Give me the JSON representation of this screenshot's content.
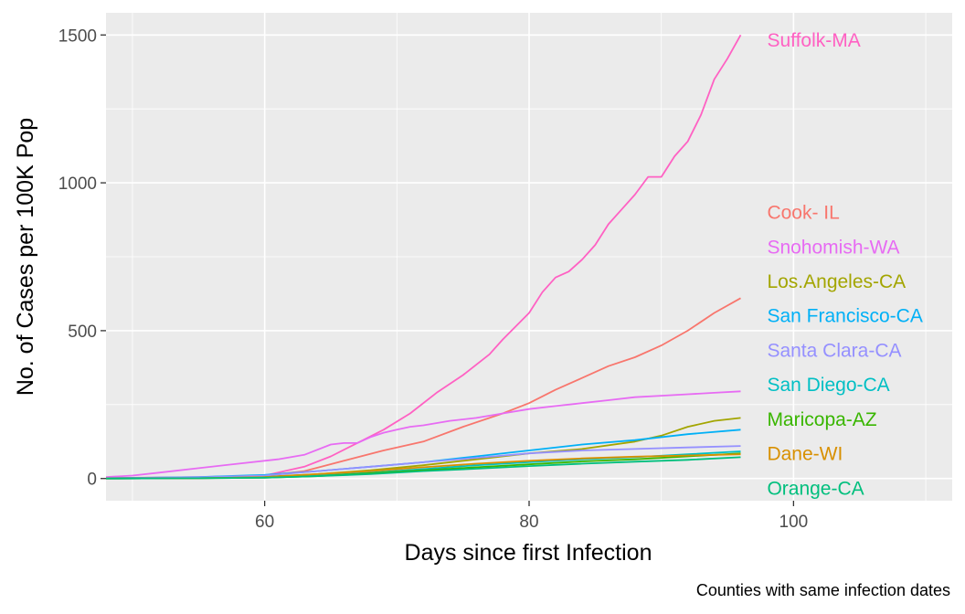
{
  "chart_data": {
    "type": "line",
    "title": "",
    "xlabel": "Days since first Infection",
    "ylabel": "No. of Cases per 100K Pop",
    "caption": "Counties with same infection dates",
    "xlim": [
      48,
      112
    ],
    "ylim": [
      -75,
      1575
    ],
    "x_ticks": [
      60,
      80,
      100
    ],
    "y_ticks": [
      0,
      500,
      1000,
      1500
    ],
    "grid": true,
    "legend": "none",
    "series": [
      {
        "name": "Suffolk-MA",
        "color": "#ff61c3",
        "x": [
          48,
          55,
          60,
          63,
          65,
          67,
          69,
          71,
          73,
          75,
          77,
          78,
          80,
          81,
          82,
          83,
          84,
          85,
          86,
          87,
          88,
          89,
          90,
          91,
          92,
          93,
          94,
          95,
          96
        ],
        "y": [
          2,
          5,
          10,
          40,
          75,
          120,
          165,
          220,
          290,
          350,
          420,
          470,
          560,
          630,
          680,
          700,
          740,
          790,
          860,
          910,
          960,
          1020,
          1020,
          1090,
          1140,
          1230,
          1350,
          1420,
          1500
        ]
      },
      {
        "name": "Cook- IL",
        "color": "#f8766d",
        "x": [
          48,
          55,
          60,
          63,
          66,
          69,
          72,
          75,
          78,
          80,
          82,
          84,
          86,
          88,
          90,
          92,
          94,
          96
        ],
        "y": [
          1,
          3,
          10,
          25,
          60,
          95,
          125,
          175,
          220,
          255,
          300,
          340,
          380,
          410,
          450,
          500,
          560,
          610
        ]
      },
      {
        "name": "Snohomish-WA",
        "color": "#e76bf3",
        "x": [
          48,
          50,
          52,
          55,
          58,
          61,
          63,
          65,
          66,
          67,
          68,
          69,
          70,
          71,
          72,
          74,
          76,
          78,
          80,
          82,
          84,
          86,
          88,
          90,
          92,
          94,
          96
        ],
        "y": [
          5,
          10,
          20,
          35,
          50,
          65,
          80,
          115,
          120,
          120,
          140,
          155,
          165,
          175,
          180,
          195,
          205,
          220,
          235,
          245,
          255,
          265,
          275,
          280,
          285,
          290,
          295
        ]
      },
      {
        "name": "Los.Angeles-CA",
        "color": "#a3a500",
        "x": [
          48,
          55,
          60,
          64,
          68,
          72,
          76,
          80,
          84,
          88,
          90,
          92,
          94,
          96
        ],
        "y": [
          0,
          2,
          6,
          15,
          28,
          45,
          65,
          85,
          100,
          125,
          145,
          175,
          195,
          205
        ]
      },
      {
        "name": "San Francisco-CA",
        "color": "#00b0f6",
        "x": [
          48,
          55,
          60,
          64,
          68,
          72,
          76,
          80,
          84,
          88,
          92,
          96
        ],
        "y": [
          1,
          5,
          12,
          25,
          40,
          55,
          75,
          95,
          115,
          130,
          150,
          165
        ]
      },
      {
        "name": "Santa Clara-CA",
        "color": "#9590ff",
        "x": [
          48,
          55,
          60,
          64,
          68,
          72,
          76,
          80,
          84,
          88,
          92,
          96
        ],
        "y": [
          1,
          4,
          10,
          25,
          40,
          55,
          70,
          85,
          95,
          100,
          105,
          110
        ]
      },
      {
        "name": "San Diego-CA",
        "color": "#00bfc4",
        "x": [
          48,
          55,
          60,
          64,
          68,
          72,
          76,
          80,
          84,
          88,
          92,
          96
        ],
        "y": [
          0,
          1,
          4,
          10,
          20,
          32,
          45,
          55,
          65,
          72,
          82,
          92
        ]
      },
      {
        "name": "Maricopa-AZ",
        "color": "#39b600",
        "x": [
          48,
          55,
          60,
          64,
          68,
          72,
          76,
          80,
          84,
          88,
          92,
          96
        ],
        "y": [
          0,
          1,
          3,
          8,
          18,
          28,
          38,
          48,
          58,
          65,
          75,
          85
        ]
      },
      {
        "name": "Dane-WI",
        "color": "#d89000",
        "x": [
          48,
          55,
          60,
          64,
          68,
          72,
          76,
          80,
          84,
          88,
          92,
          96
        ],
        "y": [
          0,
          1,
          5,
          15,
          25,
          38,
          50,
          60,
          68,
          74,
          78,
          82
        ]
      },
      {
        "name": "Orange-CA",
        "color": "#00bf7d",
        "x": [
          48,
          55,
          60,
          64,
          68,
          72,
          76,
          80,
          84,
          88,
          92,
          96
        ],
        "y": [
          0,
          1,
          3,
          8,
          15,
          25,
          33,
          42,
          50,
          57,
          63,
          72
        ]
      }
    ]
  }
}
